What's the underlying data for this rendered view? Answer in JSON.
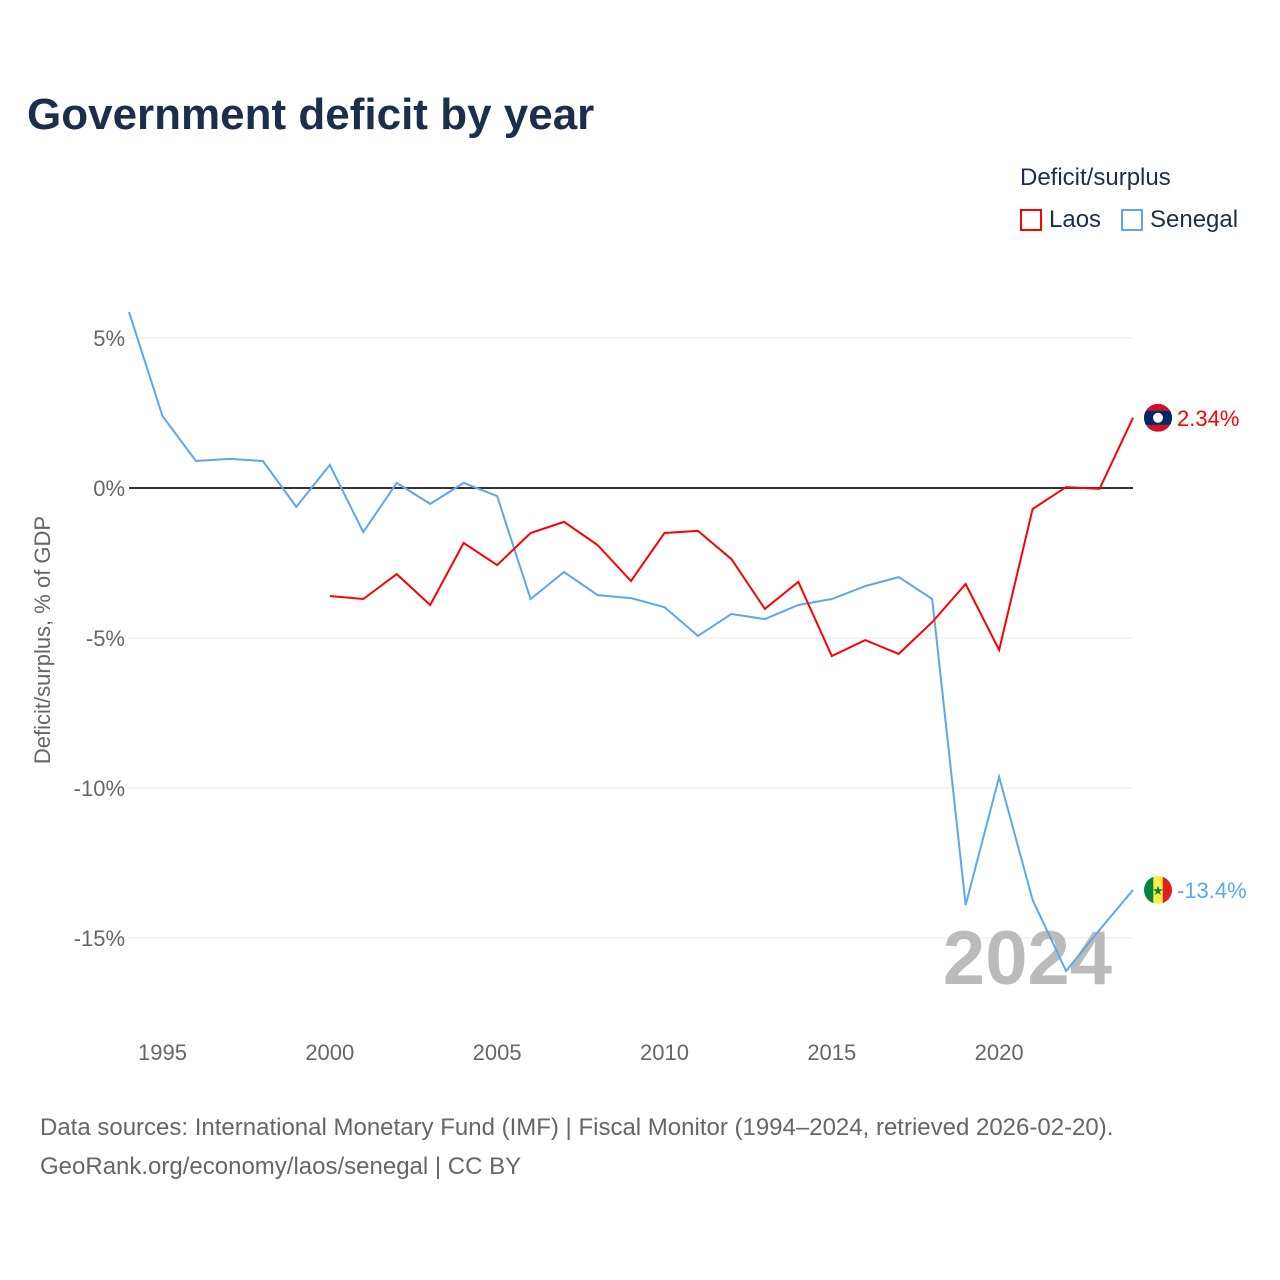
{
  "title": "Government deficit by year",
  "legend": {
    "title": "Deficit/surplus",
    "items": [
      {
        "name": "Laos",
        "color": "#ff0000"
      },
      {
        "name": "Senegal",
        "color": "#5ba8ef"
      }
    ]
  },
  "source": {
    "line1": "Data sources: International Monetary Fund (IMF) | Fiscal Monitor (1994–2024, retrieved 2026-02-20).",
    "line2": "GeoRank.org/economy/laos/senegal | CC BY"
  },
  "chart_data": {
    "type": "line",
    "title": "Government deficit by year",
    "xlabel": "",
    "ylabel": "Deficit/surplus, % of GDP",
    "xlim": [
      1994,
      2024
    ],
    "ylim": [
      -17,
      6
    ],
    "x_ticks": [
      1995,
      2000,
      2005,
      2010,
      2015,
      2020
    ],
    "y_ticks": [
      5,
      0,
      -5,
      -10,
      -15
    ],
    "y_tick_labels": [
      "5%",
      "0%",
      "-5%",
      "-10%",
      "-15%"
    ],
    "x_tick_labels": [
      "1995",
      "2000",
      "2005",
      "2010",
      "2015",
      "2020"
    ],
    "watermark": "2024",
    "grid": true,
    "legend_position": "top-right",
    "series": [
      {
        "name": "Laos",
        "color": "#ff0000",
        "end_label": "2.34%",
        "x": [
          2000,
          2001,
          2002,
          2003,
          2004,
          2005,
          2006,
          2007,
          2008,
          2009,
          2010,
          2011,
          2012,
          2013,
          2014,
          2015,
          2016,
          2017,
          2018,
          2019,
          2020,
          2021,
          2022,
          2023,
          2024
        ],
        "values": [
          -3.6,
          -3.7,
          -2.87,
          -3.9,
          -1.83,
          -2.57,
          -1.5,
          -1.13,
          -1.9,
          -3.1,
          -1.5,
          -1.43,
          -2.37,
          -4.03,
          -3.13,
          -5.6,
          -5.07,
          -5.53,
          -4.47,
          -3.2,
          -5.4,
          -0.7,
          0.03,
          -0.03,
          2.34
        ]
      },
      {
        "name": "Senegal",
        "color": "#5ba8ef",
        "end_label": "-13.4%",
        "x": [
          1994,
          1995,
          1996,
          1997,
          1998,
          1999,
          2000,
          2001,
          2002,
          2003,
          2004,
          2005,
          2006,
          2007,
          2008,
          2009,
          2010,
          2011,
          2012,
          2013,
          2014,
          2015,
          2016,
          2017,
          2018,
          2019,
          2020,
          2021,
          2022,
          2023,
          2024
        ],
        "values": [
          5.87,
          2.4,
          0.9,
          0.97,
          0.9,
          -0.63,
          0.77,
          -1.47,
          0.17,
          -0.53,
          0.17,
          -0.27,
          -3.7,
          -2.8,
          -3.57,
          -3.67,
          -3.97,
          -4.93,
          -4.2,
          -4.37,
          -3.9,
          -3.7,
          -3.27,
          -2.97,
          -3.7,
          -13.9,
          -9.63,
          -13.73,
          -16.1,
          -14.73,
          -13.4
        ]
      }
    ]
  }
}
